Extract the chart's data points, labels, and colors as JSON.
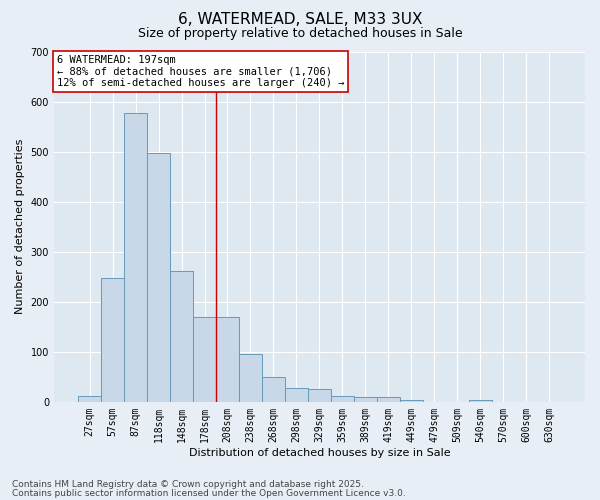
{
  "title1": "6, WATERMEAD, SALE, M33 3UX",
  "title2": "Size of property relative to detached houses in Sale",
  "xlabel": "Distribution of detached houses by size in Sale",
  "ylabel": "Number of detached properties",
  "categories": [
    "27sqm",
    "57sqm",
    "87sqm",
    "118sqm",
    "148sqm",
    "178sqm",
    "208sqm",
    "238sqm",
    "268sqm",
    "298sqm",
    "329sqm",
    "359sqm",
    "389sqm",
    "419sqm",
    "449sqm",
    "479sqm",
    "509sqm",
    "540sqm",
    "570sqm",
    "600sqm",
    "630sqm"
  ],
  "values": [
    12,
    248,
    578,
    497,
    261,
    170,
    170,
    96,
    50,
    27,
    25,
    12,
    10,
    10,
    4,
    0,
    0,
    4,
    0,
    0,
    0
  ],
  "bar_color": "#c8d8e8",
  "bar_edge_color": "#6699bb",
  "vline_x": 5.5,
  "vline_color": "#cc0000",
  "annotation_text": "6 WATERMEAD: 197sqm\n← 88% of detached houses are smaller (1,706)\n12% of semi-detached houses are larger (240) →",
  "annotation_box_facecolor": "#ffffff",
  "annotation_box_edgecolor": "#cc0000",
  "ylim": [
    0,
    700
  ],
  "yticks": [
    0,
    100,
    200,
    300,
    400,
    500,
    600,
    700
  ],
  "plot_bg_color": "#dde8f0",
  "fig_bg_color": "#e8eef5",
  "grid_color": "#ffffff",
  "footer1": "Contains HM Land Registry data © Crown copyright and database right 2025.",
  "footer2": "Contains public sector information licensed under the Open Government Licence v3.0.",
  "title1_fontsize": 11,
  "title2_fontsize": 9,
  "axis_label_fontsize": 8,
  "tick_fontsize": 7,
  "annotation_fontsize": 7.5,
  "footer_fontsize": 6.5
}
